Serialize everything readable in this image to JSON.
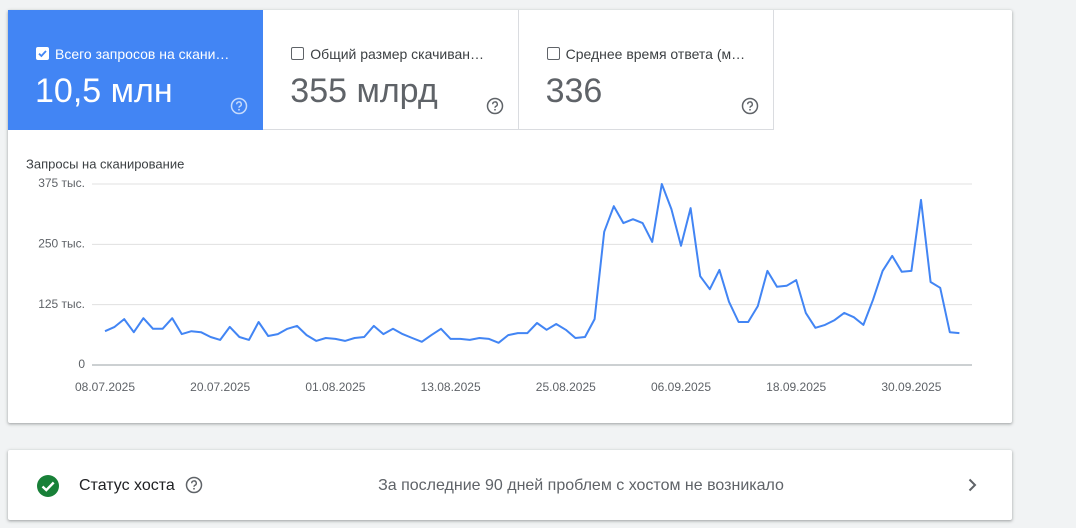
{
  "metrics": [
    {
      "label": "Всего запросов на скани…",
      "value": "10,5 млн",
      "selected": true
    },
    {
      "label": "Общий размер скачиван…",
      "value": "355 млрд",
      "selected": false
    },
    {
      "label": "Среднее время ответа (м…",
      "value": "336",
      "selected": false
    }
  ],
  "chart_data": {
    "type": "line",
    "y_label": "Запросы на сканирование",
    "categories": [
      "08.07.2025",
      null,
      null,
      null,
      null,
      null,
      null,
      null,
      null,
      null,
      null,
      null,
      "20.07.2025",
      null,
      null,
      null,
      null,
      null,
      null,
      null,
      null,
      null,
      null,
      null,
      "01.08.2025",
      null,
      null,
      null,
      null,
      null,
      null,
      null,
      null,
      null,
      null,
      null,
      "13.08.2025",
      null,
      null,
      null,
      null,
      null,
      null,
      null,
      null,
      null,
      null,
      null,
      "25.08.2025",
      null,
      null,
      null,
      null,
      null,
      null,
      null,
      null,
      null,
      null,
      null,
      "06.09.2025",
      null,
      null,
      null,
      null,
      null,
      null,
      null,
      null,
      null,
      null,
      null,
      "18.09.2025",
      null,
      null,
      null,
      null,
      null,
      null,
      null,
      null,
      null,
      null,
      null,
      "30.09.2025",
      null,
      null,
      null,
      null,
      null
    ],
    "series": [
      {
        "color": "#4285f4",
        "values": [
          70,
          79,
          95,
          68,
          97,
          75,
          75,
          97,
          64,
          70,
          68,
          58,
          52,
          79,
          58,
          52,
          89,
          60,
          64,
          75,
          81,
          62,
          50,
          56,
          54,
          50,
          56,
          58,
          81,
          64,
          75,
          64,
          56,
          48,
          62,
          75,
          54,
          54,
          52,
          56,
          54,
          46,
          62,
          66,
          66,
          87,
          73,
          85,
          73,
          56,
          58,
          95,
          276,
          329,
          294,
          302,
          294,
          255,
          375,
          323,
          247,
          325,
          184,
          157,
          197,
          131,
          89,
          89,
          122,
          195,
          162,
          164,
          176,
          108,
          77,
          83,
          93,
          108,
          99,
          83,
          135,
          195,
          226,
          193,
          195,
          342,
          172,
          160,
          68,
          66
        ]
      }
    ],
    "ylim": [
      0,
      375
    ],
    "yticks": [
      0,
      {
        "value": 125,
        "label": "125 тыс."
      },
      {
        "value": 250,
        "label": "250 тыс."
      },
      {
        "value": 375,
        "label": "375 тыс."
      }
    ],
    "grid": true
  },
  "host_status": {
    "title": "Статус хоста",
    "message": "За последние 90 дней проблем с хостом не возникало"
  }
}
